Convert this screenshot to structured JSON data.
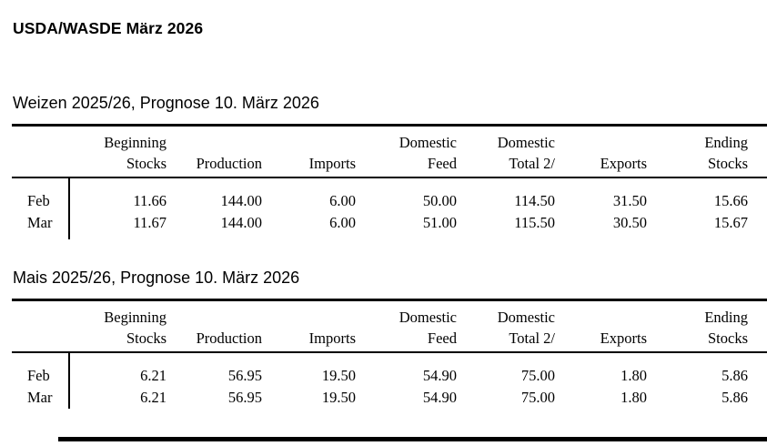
{
  "document": {
    "title": "USDA/WASDE März 2026"
  },
  "tables": [
    {
      "title": "Weizen 2025/26, Prognose 10. März 2026",
      "columns": [
        {
          "line1": "Beginning",
          "line2": "Stocks"
        },
        {
          "line1": "",
          "line2": "Production"
        },
        {
          "line1": "",
          "line2": "Imports"
        },
        {
          "line1": "Domestic",
          "line2": "Feed"
        },
        {
          "line1": "Domestic",
          "line2": "Total 2/"
        },
        {
          "line1": "",
          "line2": "Exports"
        },
        {
          "line1": "Ending",
          "line2": "Stocks"
        }
      ],
      "rows": [
        {
          "label": "Feb",
          "values": [
            "11.66",
            "144.00",
            "6.00",
            "50.00",
            "114.50",
            "31.50",
            "15.66"
          ]
        },
        {
          "label": "Mar",
          "values": [
            "11.67",
            "144.00",
            "6.00",
            "51.00",
            "115.50",
            "30.50",
            "15.67"
          ]
        }
      ]
    },
    {
      "title": "Mais 2025/26, Prognose 10. März 2026",
      "columns": [
        {
          "line1": "Beginning",
          "line2": "Stocks"
        },
        {
          "line1": "",
          "line2": "Production"
        },
        {
          "line1": "",
          "line2": "Imports"
        },
        {
          "line1": "Domestic",
          "line2": "Feed"
        },
        {
          "line1": "Domestic",
          "line2": "Total 2/"
        },
        {
          "line1": "",
          "line2": "Exports"
        },
        {
          "line1": "Ending",
          "line2": "Stocks"
        }
      ],
      "rows": [
        {
          "label": "Feb",
          "values": [
            "6.21",
            "56.95",
            "19.50",
            "54.90",
            "75.00",
            "1.80",
            "5.86"
          ]
        },
        {
          "label": "Mar",
          "values": [
            "6.21",
            "56.95",
            "19.50",
            "54.90",
            "75.00",
            "1.80",
            "5.86"
          ]
        }
      ]
    }
  ]
}
